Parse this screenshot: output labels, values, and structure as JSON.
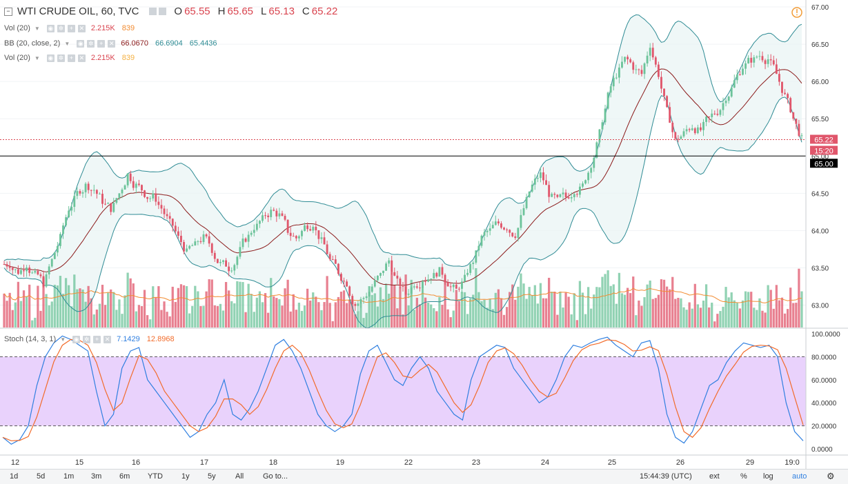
{
  "header": {
    "title": "WTI CRUDE OIL, 60, TVC",
    "open_label": "O",
    "open": "65.55",
    "high_label": "H",
    "high": "65.65",
    "low_label": "L",
    "low": "65.13",
    "close_label": "C",
    "close": "65.22"
  },
  "indicators": {
    "vol1": {
      "label": "Vol (20)",
      "v1": "2.215K",
      "v2": "839"
    },
    "bb": {
      "label": "BB (20, close, 2)",
      "v1": "66.0670",
      "v2": "66.6904",
      "v3": "65.4436"
    },
    "vol2": {
      "label": "Vol (20)",
      "v1": "2.215K",
      "v2": "839"
    },
    "stoch": {
      "label": "Stoch (14, 3, 1)",
      "v1": "7.1429",
      "v2": "12.8968"
    }
  },
  "price_badges": {
    "last": "65.22",
    "countdown": "15:20",
    "line": "65.00"
  },
  "toolbar": {
    "ranges": [
      "1d",
      "5d",
      "1m",
      "3m",
      "6m",
      "YTD",
      "1y",
      "5y",
      "All"
    ],
    "goto": "Go to...",
    "time": "15:44:39 (UTC)",
    "ext": "ext",
    "pct": "%",
    "log": "log",
    "auto": "auto"
  },
  "colors": {
    "up": "#6cc39a",
    "down": "#e0566b",
    "bb": "#2e8b94",
    "basis": "#8b1a1a",
    "stochK": "#2f7fe0",
    "stochD": "#f26b2a",
    "band": "#e5cafb"
  },
  "chart_data": [
    {
      "type": "candlestick",
      "title": "WTI CRUDE OIL, 60, TVC",
      "ylim": [
        62.7,
        67.0
      ],
      "y_ticks": [
        "67.00",
        "66.50",
        "66.00",
        "65.50",
        "65.00",
        "64.50",
        "64.00",
        "63.50",
        "63.00"
      ],
      "x_ticks": [
        "12",
        "15",
        "16",
        "17",
        "18",
        "19",
        "22",
        "23",
        "24",
        "25",
        "26",
        "29",
        "19:0"
      ],
      "horizontal_line": 65.0,
      "close_series": [
        63.55,
        63.45,
        63.55,
        63.4,
        63.3,
        63.6,
        63.9,
        64.3,
        64.5,
        64.6,
        64.55,
        64.4,
        64.3,
        64.5,
        64.75,
        64.6,
        64.5,
        64.45,
        64.3,
        64.1,
        63.9,
        63.7,
        63.8,
        63.9,
        63.75,
        63.55,
        63.5,
        63.65,
        63.9,
        64.05,
        64.15,
        64.25,
        64.2,
        64.0,
        63.9,
        64.05,
        64.1,
        63.85,
        63.6,
        63.45,
        63.3,
        63.0,
        63.1,
        63.25,
        63.4,
        63.6,
        63.3,
        63.15,
        63.3,
        63.35,
        63.4,
        63.45,
        63.3,
        63.2,
        63.35,
        63.6,
        63.9,
        64.0,
        64.1,
        64.05,
        63.95,
        64.3,
        64.6,
        64.75,
        64.5,
        64.4,
        64.45,
        64.55,
        64.6,
        64.9,
        65.3,
        65.8,
        66.1,
        66.3,
        66.2,
        66.1,
        66.5,
        66.1,
        65.6,
        65.2,
        65.3,
        65.4,
        65.35,
        65.5,
        65.6,
        65.8,
        66.0,
        66.2,
        66.3,
        66.35,
        66.3,
        66.1,
        65.8,
        65.5,
        65.22
      ],
      "bollinger": {
        "period": 20,
        "basis": 66.067,
        "upper": 66.6904,
        "lower": 65.4436
      }
    },
    {
      "type": "bar",
      "title": "Vol (20)",
      "values_label": "2.215K",
      "ma": "839"
    },
    {
      "type": "line",
      "title": "Stoch (14, 3, 1)",
      "ylim": [
        0,
        100
      ],
      "y_ticks": [
        "100.0000",
        "80.0000",
        "60.0000",
        "40.0000",
        "20.0000",
        "0.0000"
      ],
      "band": [
        20,
        80
      ],
      "series": [
        {
          "name": "%K",
          "last": 7.1429
        },
        {
          "name": "%D",
          "last": 12.8968
        }
      ],
      "k_series": [
        10,
        4,
        8,
        20,
        55,
        80,
        92,
        98,
        95,
        90,
        85,
        50,
        20,
        30,
        70,
        85,
        88,
        60,
        50,
        40,
        30,
        20,
        10,
        15,
        30,
        40,
        60,
        30,
        25,
        35,
        50,
        70,
        90,
        95,
        85,
        70,
        50,
        30,
        20,
        15,
        20,
        30,
        65,
        85,
        90,
        75,
        60,
        55,
        70,
        80,
        70,
        50,
        40,
        30,
        25,
        60,
        80,
        85,
        90,
        88,
        70,
        60,
        50,
        40,
        45,
        60,
        80,
        90,
        88,
        92,
        95,
        97,
        90,
        85,
        80,
        92,
        94,
        70,
        30,
        10,
        5,
        15,
        35,
        55,
        60,
        75,
        85,
        92,
        90,
        88,
        90,
        80,
        40,
        15,
        7
      ]
    }
  ]
}
